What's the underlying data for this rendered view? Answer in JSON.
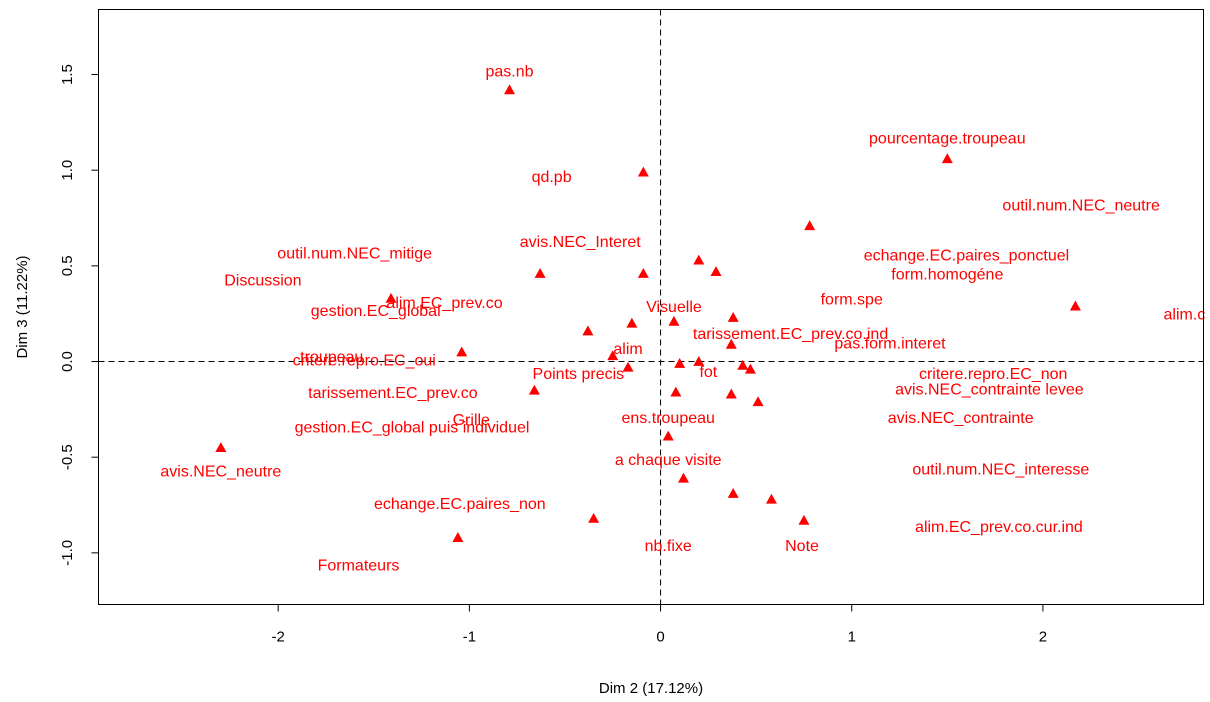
{
  "chart_data": {
    "type": "scatter",
    "title": "",
    "xlabel": "Dim 2 (17.12%)",
    "ylabel": "Dim 3 (11.22%)",
    "xlim": [
      -2.94,
      2.84
    ],
    "ylim": [
      -1.27,
      1.84
    ],
    "xticks": [
      -2,
      -1,
      0,
      1,
      2
    ],
    "yticks": [
      -1.0,
      -0.5,
      0.0,
      0.5,
      1.0,
      1.5
    ],
    "ytick_labels": [
      "-1.0",
      "-0.5",
      "0.0",
      "0.5",
      "1.0",
      "1.5"
    ],
    "xtick_labels": [
      "-2",
      "-1",
      "0",
      "1",
      "2"
    ],
    "reference_lines": {
      "x": 0,
      "y": 0,
      "style": "dashed"
    },
    "marker": "triangle",
    "color": "#ff0000",
    "points": [
      {
        "x": -0.79,
        "y": 1.42
      },
      {
        "x": -0.09,
        "y": 0.99
      },
      {
        "x": 1.5,
        "y": 1.06
      },
      {
        "x": 0.78,
        "y": 0.71
      },
      {
        "x": 2.17,
        "y": 0.29
      },
      {
        "x": 0.2,
        "y": 0.53
      },
      {
        "x": 0.29,
        "y": 0.47
      },
      {
        "x": -0.09,
        "y": 0.46
      },
      {
        "x": -0.63,
        "y": 0.46
      },
      {
        "x": -1.41,
        "y": 0.33
      },
      {
        "x": -0.38,
        "y": 0.16
      },
      {
        "x": -0.15,
        "y": 0.2
      },
      {
        "x": 0.07,
        "y": 0.21
      },
      {
        "x": 0.38,
        "y": 0.23
      },
      {
        "x": 0.37,
        "y": 0.09
      },
      {
        "x": -1.04,
        "y": 0.05
      },
      {
        "x": -0.25,
        "y": 0.03
      },
      {
        "x": -0.17,
        "y": -0.03
      },
      {
        "x": 0.1,
        "y": -0.01
      },
      {
        "x": 0.2,
        "y": 0.0
      },
      {
        "x": 0.43,
        "y": -0.02
      },
      {
        "x": 0.47,
        "y": -0.04
      },
      {
        "x": -0.66,
        "y": -0.15
      },
      {
        "x": 0.08,
        "y": -0.16
      },
      {
        "x": 0.37,
        "y": -0.17
      },
      {
        "x": 0.51,
        "y": -0.21
      },
      {
        "x": 0.04,
        "y": -0.39
      },
      {
        "x": -2.3,
        "y": -0.45
      },
      {
        "x": 0.12,
        "y": -0.61
      },
      {
        "x": 0.38,
        "y": -0.69
      },
      {
        "x": 0.58,
        "y": -0.72
      },
      {
        "x": 0.75,
        "y": -0.83
      },
      {
        "x": -0.35,
        "y": -0.82
      },
      {
        "x": -1.06,
        "y": -0.92
      }
    ],
    "labels": [
      {
        "text": "pas.nb",
        "x": -0.79,
        "y": 1.52
      },
      {
        "text": "pourcentage.troupeau",
        "x": 1.5,
        "y": 1.17
      },
      {
        "text": "qd.pb",
        "x": -0.57,
        "y": 0.97
      },
      {
        "text": "outil.num.NEC_neutre",
        "x": 2.2,
        "y": 0.82
      },
      {
        "text": "avis.NEC_Interet",
        "x": -0.42,
        "y": 0.63
      },
      {
        "text": "outil.num.NEC_mitige",
        "x": -1.6,
        "y": 0.57
      },
      {
        "text": "echange.EC.paires_ponctuel",
        "x": 1.6,
        "y": 0.56
      },
      {
        "text": "Discussion",
        "x": -2.08,
        "y": 0.43
      },
      {
        "text": "form.homogéne",
        "x": 1.5,
        "y": 0.46
      },
      {
        "text": "alim.EC_prev.co",
        "x": -1.13,
        "y": 0.31
      },
      {
        "text": "gestion.EC_global",
        "x": -1.49,
        "y": 0.27
      },
      {
        "text": "form.spe",
        "x": 1.0,
        "y": 0.33
      },
      {
        "text": "Visuelle",
        "x": 0.07,
        "y": 0.29
      },
      {
        "text": "alim.c",
        "x": 2.74,
        "y": 0.25
      },
      {
        "text": "tarissement.EC_prev.co.ind",
        "x": 0.68,
        "y": 0.15
      },
      {
        "text": "pas.form.interet",
        "x": 1.2,
        "y": 0.1
      },
      {
        "text": "alim",
        "x": -0.17,
        "y": 0.07
      },
      {
        "text": "troupeau",
        "x": -1.72,
        "y": 0.03
      },
      {
        "text": "critere.repro.EC_oui",
        "x": -1.55,
        "y": 0.01
      },
      {
        "text": "critere.repro.EC_non",
        "x": 1.74,
        "y": -0.06
      },
      {
        "text": "Points precis",
        "x": -0.43,
        "y": -0.06
      },
      {
        "text": "fot",
        "x": 0.25,
        "y": -0.05
      },
      {
        "text": "tarissement.EC_prev.co",
        "x": -1.4,
        "y": -0.16
      },
      {
        "text": "avis.NEC_contrainte levee",
        "x": 1.72,
        "y": -0.14
      },
      {
        "text": "Grille",
        "x": -0.99,
        "y": -0.3
      },
      {
        "text": "avis.NEC_contrainte",
        "x": 1.57,
        "y": -0.29
      },
      {
        "text": "gestion.EC_global puis individuel",
        "x": -1.3,
        "y": -0.34
      },
      {
        "text": "ens.troupeau",
        "x": 0.04,
        "y": -0.29
      },
      {
        "text": "a chaque visite",
        "x": 0.04,
        "y": -0.51
      },
      {
        "text": "avis.NEC_neutre",
        "x": -2.3,
        "y": -0.57
      },
      {
        "text": "outil.num.NEC_interesse",
        "x": 1.78,
        "y": -0.56
      },
      {
        "text": "echange.EC.paires_non",
        "x": -1.05,
        "y": -0.74
      },
      {
        "text": "alim.EC_prev.co.cur.ind",
        "x": 1.77,
        "y": -0.86
      },
      {
        "text": "nb.fixe",
        "x": 0.04,
        "y": -0.96
      },
      {
        "text": "Note",
        "x": 0.74,
        "y": -0.96
      },
      {
        "text": "Formateurs",
        "x": -1.58,
        "y": -1.06
      }
    ]
  }
}
